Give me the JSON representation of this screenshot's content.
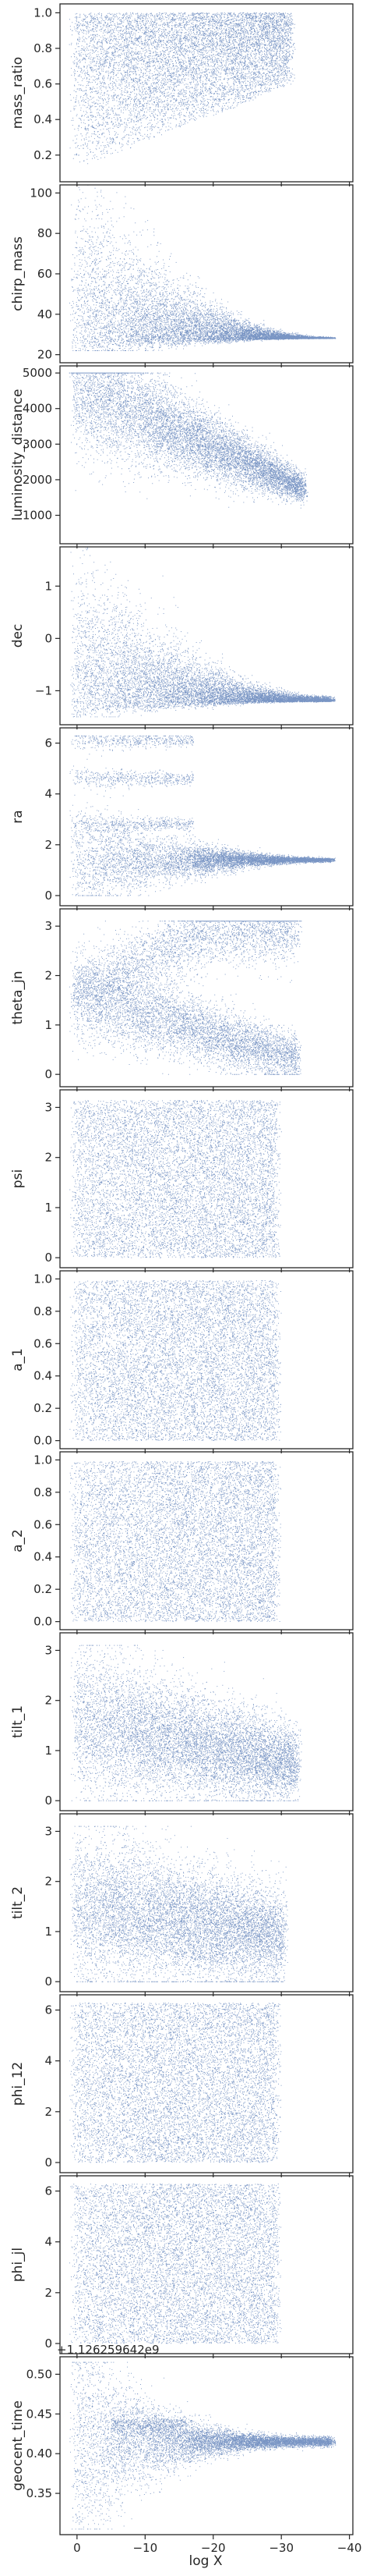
{
  "colors": {
    "points": "#4c72b0",
    "frame": "#262626",
    "background": "#ffffff"
  },
  "chart_data": {
    "type": "scatter",
    "x": {
      "label": "log X",
      "lim": [
        2.5,
        -40.5
      ],
      "ticks": [
        0,
        -10,
        -20,
        -30,
        -40
      ],
      "tick_labels": [
        "0",
        "−10",
        "−20",
        "−30",
        "−40"
      ]
    },
    "panels": [
      {
        "ylabel": "mass_ratio",
        "ylim": [
          0.05,
          1.05
        ],
        "yticks": [
          0.2,
          0.4,
          0.6,
          0.8,
          1.0
        ],
        "ytick_labels": [
          "0.2",
          "0.4",
          "0.6",
          "0.8",
          "1.0"
        ],
        "shape": "wedge",
        "xend": -32,
        "lo": 0.12,
        "hi": 1.0,
        "start_lo": 0.12,
        "end_lo": 0.6,
        "density": 9000
      },
      {
        "ylabel": "chirp_mass",
        "ylim": [
          16,
          104
        ],
        "yticks": [
          20,
          40,
          60,
          80,
          100
        ],
        "ytick_labels": [
          "20",
          "40",
          "60",
          "80",
          "100"
        ],
        "shape": "funnel",
        "xend": -38,
        "center": 28,
        "spread_start": 75,
        "spread_end": 0.5,
        "floor": 22,
        "density": 9000
      },
      {
        "ylabel": "luminosity_distance",
        "ylim": [
          200,
          5200
        ],
        "yticks": [
          1000,
          2000,
          3000,
          4000,
          5000
        ],
        "ytick_labels": [
          "1000",
          "2000",
          "3000",
          "4000",
          "5000"
        ],
        "shape": "decay",
        "xend": -34,
        "start": 4600,
        "end": 1700,
        "spread_start": 1800,
        "spread_end": 350,
        "cap": 5000,
        "density": 9000
      },
      {
        "ylabel": "dec",
        "ylim": [
          -1.65,
          1.75
        ],
        "yticks": [
          -1,
          0,
          1
        ],
        "ytick_labels": [
          "−1",
          "0",
          "1"
        ],
        "shape": "funnel",
        "xend": -38,
        "center": -1.2,
        "spread_start": 2.6,
        "spread_end": 0.08,
        "floor": -1.5,
        "density": 9000
      },
      {
        "ylabel": "ra",
        "ylim": [
          -0.4,
          6.6
        ],
        "yticks": [
          0,
          2,
          4,
          6
        ],
        "ytick_labels": [
          "0",
          "2",
          "4",
          "6"
        ],
        "shape": "bands",
        "xend": -38,
        "main": 1.4,
        "bands": [
          2.8,
          4.6,
          6.1
        ],
        "density": 9000
      },
      {
        "ylabel": "theta_jn",
        "ylim": [
          -0.25,
          3.35
        ],
        "yticks": [
          0,
          1,
          2,
          3
        ],
        "ytick_labels": [
          "0",
          "1",
          "2",
          "3"
        ],
        "shape": "twobranch",
        "xend": -33,
        "lower_start": 1.6,
        "lower_end": 0.3,
        "upper_start": 1.7,
        "upper_end": 2.9,
        "density": 9000
      },
      {
        "ylabel": "psi",
        "ylim": [
          -0.2,
          3.35
        ],
        "yticks": [
          0,
          1,
          2,
          3
        ],
        "ytick_labels": [
          "0",
          "1",
          "2",
          "3"
        ],
        "shape": "uniform",
        "xend": -30,
        "lo": 0,
        "hi": 3.14,
        "density": 9000
      },
      {
        "ylabel": "a_1",
        "ylim": [
          -0.05,
          1.05
        ],
        "yticks": [
          0.0,
          0.2,
          0.4,
          0.6,
          0.8,
          1.0
        ],
        "ytick_labels": [
          "0.0",
          "0.2",
          "0.4",
          "0.6",
          "0.8",
          "1.0"
        ],
        "shape": "uniform",
        "xend": -30,
        "lo": 0,
        "hi": 0.99,
        "density": 9000
      },
      {
        "ylabel": "a_2",
        "ylim": [
          -0.05,
          1.05
        ],
        "yticks": [
          0.0,
          0.2,
          0.4,
          0.6,
          0.8,
          1.0
        ],
        "ytick_labels": [
          "0.0",
          "0.2",
          "0.4",
          "0.6",
          "0.8",
          "1.0"
        ],
        "shape": "uniform",
        "xend": -30,
        "lo": 0,
        "hi": 0.99,
        "density": 9000
      },
      {
        "ylabel": "tilt_1",
        "ylim": [
          -0.2,
          3.35
        ],
        "yticks": [
          0,
          1,
          2,
          3
        ],
        "ytick_labels": [
          "0",
          "1",
          "2",
          "3"
        ],
        "shape": "decay",
        "xend": -33,
        "start": 1.6,
        "end": 0.7,
        "spread_start": 1.5,
        "spread_end": 0.7,
        "cap": 3.1,
        "density": 9000
      },
      {
        "ylabel": "tilt_2",
        "ylim": [
          -0.2,
          3.35
        ],
        "yticks": [
          0,
          1,
          2,
          3
        ],
        "ytick_labels": [
          "0",
          "1",
          "2",
          "3"
        ],
        "shape": "decay",
        "xend": -31,
        "start": 1.5,
        "end": 0.9,
        "spread_start": 1.5,
        "spread_end": 0.9,
        "cap": 3.1,
        "density": 9000
      },
      {
        "ylabel": "phi_12",
        "ylim": [
          -0.4,
          6.6
        ],
        "yticks": [
          0,
          2,
          4,
          6
        ],
        "ytick_labels": [
          "0",
          "2",
          "4",
          "6"
        ],
        "shape": "uniform",
        "xend": -30,
        "lo": 0,
        "hi": 6.28,
        "density": 9000
      },
      {
        "ylabel": "phi_jl",
        "ylim": [
          -0.4,
          6.6
        ],
        "yticks": [
          0,
          2,
          4,
          6
        ],
        "ytick_labels": [
          "0",
          "2",
          "4",
          "6"
        ],
        "shape": "uniform",
        "xend": -30,
        "lo": 0,
        "hi": 6.28,
        "density": 9000
      },
      {
        "ylabel": "geocent_time",
        "ylim": [
          0.298,
          0.522
        ],
        "yticks": [
          0.35,
          0.4,
          0.45,
          0.5
        ],
        "ytick_labels": [
          "0.35",
          "0.40",
          "0.45",
          "0.50"
        ],
        "offset_text": "+1.126259642e9",
        "shape": "geocent",
        "xend": -38,
        "center": 0.415,
        "density": 9000
      }
    ]
  }
}
